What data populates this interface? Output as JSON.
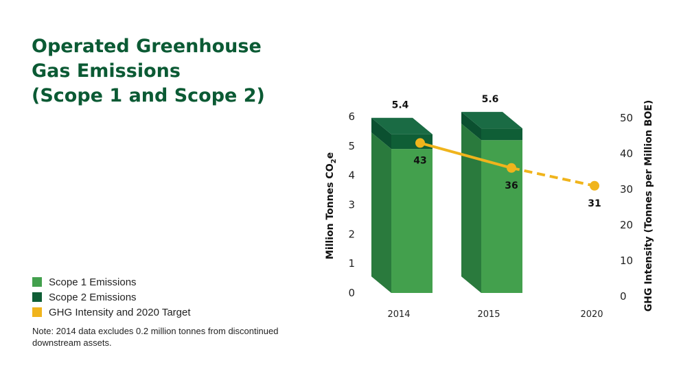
{
  "title_lines": [
    "Operated Greenhouse",
    "Gas Emissions",
    "(Scope 1 and Scope 2)"
  ],
  "legend": [
    {
      "label": "Scope 1 Emissions",
      "color": "#43a04d"
    },
    {
      "label": "Scope 2 Emissions",
      "color": "#0f5e36"
    },
    {
      "label": "GHG Intensity and 2020 Target",
      "color": "#f0b41c"
    }
  ],
  "note": "Note: 2014 data excludes 0.2 million tonnes from discontinued downstream assets.",
  "chart_data": {
    "type": "bar",
    "categories": [
      "2014",
      "2015",
      "2020"
    ],
    "series": [
      {
        "name": "Scope 1 Emissions",
        "type": "bar",
        "axis": "left",
        "values": [
          4.9,
          5.2,
          null
        ]
      },
      {
        "name": "Scope 2 Emissions",
        "type": "bar",
        "axis": "left",
        "values": [
          0.5,
          0.4,
          null
        ]
      },
      {
        "name": "GHG Intensity and 2020 Target",
        "type": "line",
        "axis": "right",
        "values": [
          43,
          36,
          31
        ],
        "labels": [
          "43",
          "36",
          "31"
        ],
        "target_from_index": 1
      }
    ],
    "bar_totals": [
      "5.4",
      "5.6"
    ],
    "ylabel": "Million Tonnes CO",
    "ylabel_sub": "2",
    "ylabel_end": "e",
    "y2label": "GHG Intensity (Tonnes per Million BOE)",
    "ylim": [
      0,
      6
    ],
    "y2lim": [
      0,
      50
    ],
    "yticks": [
      "0",
      "1",
      "2",
      "3",
      "4",
      "5",
      "6"
    ],
    "y2ticks": [
      "0",
      "10",
      "20",
      "30",
      "40",
      "50"
    ],
    "colors": {
      "scope1": "#43a04d",
      "scope2": "#0f5e36",
      "intensity": "#f0b41c"
    }
  }
}
